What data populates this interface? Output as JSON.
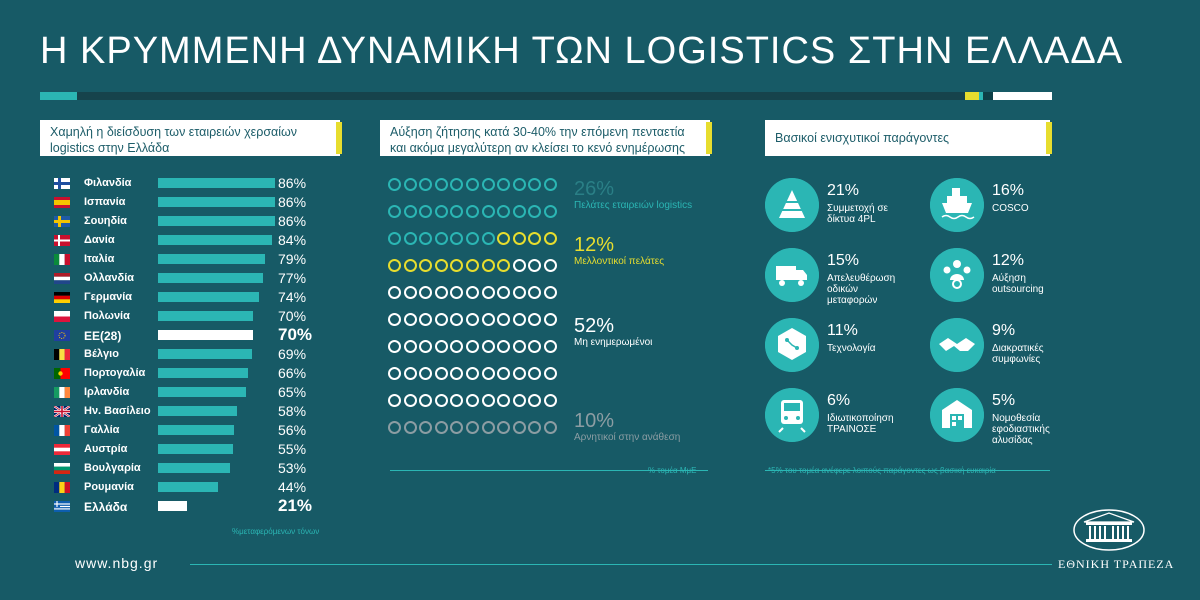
{
  "title": "Η ΚΡΥΜΜΕΝΗ ΔΥΝΑΜΙΚΗ ΤΩΝ LOGISTICS ΣΤΗΝ ΕΛΛΑΔΑ",
  "colors": {
    "background": "#175a66",
    "teal": "#2bb6b4",
    "yellow": "#e7dd2e",
    "grey": "#8c9da3",
    "white": "#ffffff"
  },
  "left_panel": {
    "heading": "Χαμηλή η διείσδυση των εταιρειών χερσαίων logistics στην Ελλάδα",
    "footnote": "%μεταφερόμενων τόνων"
  },
  "middle_panel": {
    "heading": "Αύξηση ζήτησης κατά 30-40% την επόμενη πενταετία και ακόμα μεγαλύτερη αν κλείσει το κενό ενημέρωσης",
    "segments": [
      {
        "pct": "26%",
        "label": "Πελάτες εταιρειών logistics",
        "color": "teal"
      },
      {
        "pct": "12%",
        "label": "Μελλοντικοί πελάτες",
        "color": "yellow"
      },
      {
        "pct": "52%",
        "label": "Μη ενημερωμένοι",
        "color": "white"
      },
      {
        "pct": "10%",
        "label": "Αρνητικοί στην ανάθεση",
        "color": "grey"
      }
    ],
    "footnote": "% τομέα ΜμΕ"
  },
  "right_panel": {
    "heading": "Βασικοί ενισχυτικοί παράγοντες",
    "factors": [
      {
        "pct": "21%",
        "label": "Συμμετοχή σε δίκτυα 4PL",
        "icon": "pyramid-icon"
      },
      {
        "pct": "16%",
        "label": "COSCO",
        "icon": "ship-icon"
      },
      {
        "pct": "15%",
        "label": "Απελευθέρωση οδικών μεταφορών",
        "icon": "truck-icon"
      },
      {
        "pct": "12%",
        "label": "Αύξηση outsourcing",
        "icon": "people-network-icon"
      },
      {
        "pct": "11%",
        "label": "Τεχνολογία",
        "icon": "circuit-hexagon-icon"
      },
      {
        "pct": "9%",
        "label": "Διακρατικές συμφωνίες",
        "icon": "handshake-icon"
      },
      {
        "pct": "6%",
        "label": "Ιδιωτικοποίηση ΤΡΑΙΝΟΣΕ",
        "icon": "train-icon"
      },
      {
        "pct": "5%",
        "label": "Νομοθεσία εφοδιαστικής αλυσίδας",
        "icon": "warehouse-icon"
      }
    ],
    "footnote": "*5% του τομέα ανέφερε λοιπούς παράγοντες ως βασική ευκαιρία"
  },
  "footer": {
    "website": "www.nbg.gr",
    "bank_name": "ΕΘΝΙΚΗ ΤΡΑΠΕΖΑ"
  },
  "chart_data": [
    {
      "type": "bar",
      "orientation": "horizontal",
      "title": "Χαμηλή η διείσδυση των εταιρειών χερσαίων logistics στην Ελλάδα",
      "xlabel": "%μεταφερόμενων τόνων",
      "categories": [
        "Φιλανδία",
        "Ισπανία",
        "Σουηδία",
        "Δανία",
        "Ιταλία",
        "Ολλανδία",
        "Γερμανία",
        "Πολωνία",
        "ΕΕ(28)",
        "Βέλγιο",
        "Πορτογαλία",
        "Ιρλανδία",
        "Ην. Βασίλειο",
        "Γαλλία",
        "Αυστρία",
        "Βουλγαρία",
        "Ρουμανία",
        "Ελλάδα"
      ],
      "values": [
        86,
        86,
        86,
        84,
        79,
        77,
        74,
        70,
        70,
        69,
        66,
        65,
        58,
        56,
        55,
        53,
        44,
        21
      ],
      "labels": [
        "86%",
        "86%",
        "86%",
        "84%",
        "79%",
        "77%",
        "74%",
        "70%",
        "70%",
        "69%",
        "66%",
        "65%",
        "58%",
        "56%",
        "55%",
        "53%",
        "44%",
        "21%"
      ],
      "highlighted": [
        "ΕΕ(28)",
        "Ελλάδα"
      ],
      "xlim": [
        0,
        100
      ]
    },
    {
      "type": "waffle",
      "title": "Αύξηση ζήτησης κατά 30-40% την επόμενη πενταετία και ακόμα μεγαλύτερη αν κλείσει το κενό ενημέρωσης",
      "unit": "% τομέα ΜμΕ",
      "categories": [
        "Πελάτες εταιρειών logistics",
        "Μελλοντικοί πελάτες",
        "Μη ενημερωμένοι",
        "Αρνητικοί στην ανάθεση"
      ],
      "values": [
        26,
        12,
        52,
        10
      ]
    },
    {
      "type": "table",
      "title": "Βασικοί ενισχυτικοί παράγοντες",
      "categories": [
        "Συμμετοχή σε δίκτυα 4PL",
        "COSCO",
        "Απελευθέρωση οδικών μεταφορών",
        "Αύξηση outsourcing",
        "Τεχνολογία",
        "Διακρατικές συμφωνίες",
        "Ιδιωτικοποίηση ΤΡΑΙΝΟΣΕ",
        "Νομοθεσία εφοδιαστικής αλυσίδας"
      ],
      "values": [
        21,
        16,
        15,
        12,
        11,
        9,
        6,
        5
      ]
    }
  ]
}
